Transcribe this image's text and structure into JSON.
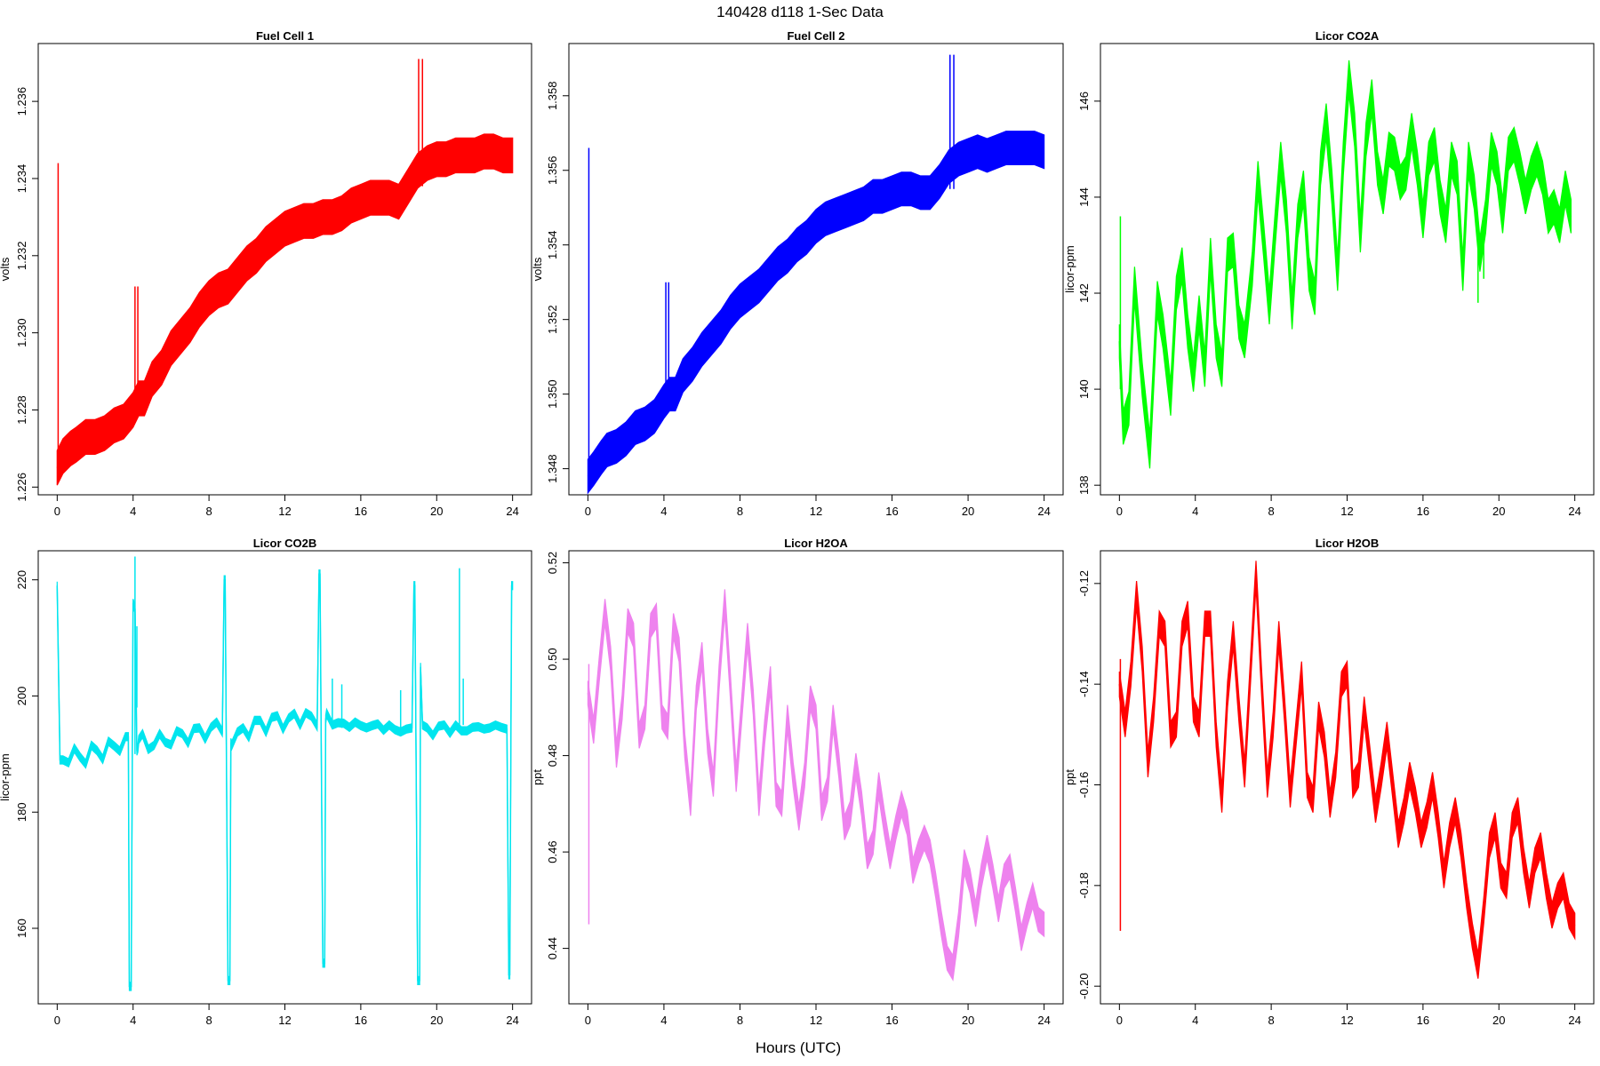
{
  "figure": {
    "title": "140428   d118   1-Sec Data",
    "xlabel": "Hours (UTC)"
  },
  "chart_data": [
    {
      "type": "line",
      "title": "Fuel Cell 1",
      "ylabel": "volts",
      "xlim": [
        -1,
        25
      ],
      "ylim": [
        1.2258,
        1.2375
      ],
      "xticks": [
        0,
        4,
        8,
        12,
        16,
        20,
        24
      ],
      "yticks": [
        1.226,
        1.228,
        1.23,
        1.232,
        1.234,
        1.236
      ],
      "ytick_labels": [
        "1.226",
        "1.228",
        "1.230",
        "1.232",
        "1.234",
        "1.236"
      ],
      "color": "#ff0000",
      "band": 0.00045,
      "x": [
        0,
        0.3,
        0.7,
        1,
        1.5,
        2,
        2.5,
        3,
        3.5,
        4,
        4.3,
        4.6,
        5,
        5.5,
        6,
        6.5,
        7,
        7.5,
        8,
        8.5,
        9,
        9.5,
        10,
        10.5,
        11,
        11.5,
        12,
        12.5,
        13,
        13.5,
        14,
        14.5,
        15,
        15.5,
        16,
        16.5,
        17,
        17.5,
        18,
        18.5,
        19,
        19.5,
        20,
        20.5,
        21,
        21.5,
        22,
        22.5,
        23,
        23.5,
        24
      ],
      "y": [
        1.2265,
        1.2268,
        1.227,
        1.2271,
        1.2273,
        1.2273,
        1.2274,
        1.2276,
        1.2277,
        1.228,
        1.2283,
        1.2283,
        1.2288,
        1.2291,
        1.2296,
        1.2299,
        1.2302,
        1.2306,
        1.2309,
        1.2311,
        1.2312,
        1.2315,
        1.2318,
        1.232,
        1.2323,
        1.2325,
        1.2327,
        1.2328,
        1.2329,
        1.2329,
        1.233,
        1.233,
        1.2331,
        1.2333,
        1.2334,
        1.2335,
        1.2335,
        1.2335,
        1.2334,
        1.2338,
        1.2342,
        1.2344,
        1.2345,
        1.2345,
        1.2346,
        1.2346,
        1.2346,
        1.2347,
        1.2347,
        1.2346,
        1.2346
      ],
      "spikes": [
        {
          "x": 0.05,
          "y": [
            1.2262,
            1.2344
          ]
        },
        {
          "x": 4.1,
          "y": [
            1.2281,
            1.2312
          ]
        },
        {
          "x": 4.25,
          "y": [
            1.2281,
            1.2312
          ]
        },
        {
          "x": 19.05,
          "y": [
            1.2338,
            1.2371
          ]
        },
        {
          "x": 19.25,
          "y": [
            1.2338,
            1.2371
          ]
        }
      ]
    },
    {
      "type": "line",
      "title": "Fuel Cell 2",
      "ylabel": "volts",
      "xlim": [
        -1,
        25
      ],
      "ylim": [
        1.3473,
        1.3594
      ],
      "xticks": [
        0,
        4,
        8,
        12,
        16,
        20,
        24
      ],
      "yticks": [
        1.348,
        1.35,
        1.352,
        1.354,
        1.356,
        1.358
      ],
      "ytick_labels": [
        "1.348",
        "1.350",
        "1.352",
        "1.354",
        "1.356",
        "1.358"
      ],
      "color": "#0000ff",
      "band": 0.00045,
      "x": [
        0,
        0.3,
        0.7,
        1,
        1.5,
        2,
        2.5,
        3,
        3.5,
        4,
        4.3,
        4.6,
        5,
        5.5,
        6,
        6.5,
        7,
        7.5,
        8,
        8.5,
        9,
        9.5,
        10,
        10.5,
        11,
        11.5,
        12,
        12.5,
        13,
        13.5,
        14,
        14.5,
        15,
        15.5,
        16,
        16.5,
        17,
        17.5,
        18,
        18.5,
        19,
        19.5,
        20,
        20.5,
        21,
        21.5,
        22,
        22.5,
        23,
        23.5,
        24
      ],
      "y": [
        1.3478,
        1.348,
        1.3483,
        1.3485,
        1.3486,
        1.3488,
        1.3491,
        1.3492,
        1.3494,
        1.3498,
        1.35,
        1.35,
        1.3505,
        1.3508,
        1.3512,
        1.3515,
        1.3518,
        1.3522,
        1.3525,
        1.3527,
        1.3529,
        1.3532,
        1.3535,
        1.3537,
        1.354,
        1.3542,
        1.3545,
        1.3547,
        1.3548,
        1.3549,
        1.355,
        1.3551,
        1.3553,
        1.3553,
        1.3554,
        1.3555,
        1.3555,
        1.3554,
        1.3554,
        1.3557,
        1.3561,
        1.3563,
        1.3564,
        1.3565,
        1.3564,
        1.3565,
        1.3566,
        1.3566,
        1.3566,
        1.3566,
        1.3565
      ],
      "spikes": [
        {
          "x": 0.05,
          "y": [
            1.3476,
            1.3566
          ]
        },
        {
          "x": 4.1,
          "y": [
            1.3497,
            1.353
          ]
        },
        {
          "x": 4.25,
          "y": [
            1.3497,
            1.353
          ]
        },
        {
          "x": 19.05,
          "y": [
            1.3555,
            1.3591
          ]
        },
        {
          "x": 19.25,
          "y": [
            1.3555,
            1.3591
          ]
        }
      ]
    },
    {
      "type": "line",
      "title": "Licor CO2A",
      "ylabel": "licor-ppm",
      "xlim": [
        -1,
        25
      ],
      "ylim": [
        137.8,
        147.2
      ],
      "xticks": [
        0,
        4,
        8,
        12,
        16,
        20,
        24
      ],
      "yticks": [
        138,
        140,
        142,
        144,
        146
      ],
      "ytick_labels": [
        "138",
        "140",
        "142",
        "144",
        "146"
      ],
      "color": "#00ff00",
      "band": 0.35,
      "x": [
        0,
        0.2,
        0.5,
        0.8,
        1.2,
        1.6,
        2,
        2.3,
        2.7,
        3,
        3.3,
        3.6,
        3.9,
        4.2,
        4.5,
        4.8,
        5.1,
        5.4,
        5.7,
        6,
        6.3,
        6.6,
        7,
        7.3,
        7.6,
        7.9,
        8.2,
        8.5,
        8.8,
        9.1,
        9.4,
        9.7,
        10,
        10.3,
        10.6,
        10.9,
        11.2,
        11.5,
        11.8,
        12.1,
        12.4,
        12.7,
        13,
        13.3,
        13.6,
        13.9,
        14.2,
        14.5,
        14.8,
        15.1,
        15.4,
        15.7,
        16,
        16.3,
        16.6,
        16.9,
        17.2,
        17.5,
        17.8,
        18.1,
        18.4,
        18.7,
        19,
        19.3,
        19.6,
        19.9,
        20.2,
        20.5,
        20.8,
        21.1,
        21.4,
        21.7,
        22,
        22.3,
        22.6,
        22.9,
        23.2,
        23.5,
        23.8
      ],
      "y": [
        141.0,
        139.2,
        139.6,
        142.2,
        140.2,
        138.7,
        141.9,
        141.2,
        139.8,
        142.0,
        142.6,
        141.2,
        140.3,
        141.6,
        140.4,
        142.8,
        141.0,
        140.4,
        142.8,
        142.9,
        141.4,
        141.0,
        142.5,
        144.4,
        143.1,
        141.7,
        143.3,
        144.8,
        143.6,
        141.6,
        143.5,
        144.2,
        142.4,
        141.9,
        144.6,
        145.6,
        144.2,
        142.4,
        144.8,
        146.5,
        145.4,
        143.2,
        145.2,
        146.1,
        144.6,
        144.0,
        145.0,
        144.9,
        144.3,
        144.5,
        145.4,
        144.6,
        143.5,
        144.8,
        145.1,
        144.0,
        143.4,
        144.8,
        144.4,
        142.4,
        144.8,
        144.1,
        142.8,
        143.6,
        145.0,
        144.6,
        143.6,
        144.9,
        145.1,
        144.6,
        144.0,
        144.5,
        144.8,
        144.4,
        143.6,
        143.8,
        143.4,
        144.2,
        143.6
      ],
      "spikes": [
        {
          "x": 0.05,
          "y": [
            140.0,
            143.6
          ]
        },
        {
          "x": 18.9,
          "y": [
            141.8,
            143.2
          ]
        },
        {
          "x": 19.2,
          "y": [
            142.3,
            143.4
          ]
        }
      ]
    },
    {
      "type": "line",
      "title": "Licor CO2B",
      "ylabel": "licor-ppm",
      "xlim": [
        -1,
        25
      ],
      "ylim": [
        147,
        225
      ],
      "xticks": [
        0,
        4,
        8,
        12,
        16,
        20,
        24
      ],
      "yticks": [
        160,
        180,
        200,
        220
      ],
      "ytick_labels": [
        "160",
        "180",
        "200",
        "220"
      ],
      "color": "#00e5ee",
      "band": 0.7,
      "x": [
        0,
        0.15,
        0.3,
        0.6,
        0.9,
        1.2,
        1.5,
        1.8,
        2.1,
        2.4,
        2.7,
        3.0,
        3.3,
        3.6,
        3.75,
        3.8,
        3.9,
        4.0,
        4.1,
        4.2,
        4.25,
        4.3,
        4.5,
        4.8,
        5.1,
        5.4,
        5.7,
        6.0,
        6.3,
        6.6,
        6.9,
        7.2,
        7.5,
        7.8,
        8.1,
        8.4,
        8.7,
        8.8,
        8.85,
        9.0,
        9.1,
        9.15,
        9.2,
        9.5,
        9.8,
        10.1,
        10.4,
        10.7,
        11.0,
        11.3,
        11.6,
        11.9,
        12.2,
        12.5,
        12.8,
        13.1,
        13.4,
        13.7,
        13.8,
        13.85,
        14.0,
        14.1,
        14.15,
        14.2,
        14.5,
        14.8,
        15.1,
        15.4,
        15.7,
        16.0,
        16.3,
        16.6,
        16.9,
        17.2,
        17.5,
        17.8,
        18.1,
        18.4,
        18.7,
        18.8,
        18.85,
        19.0,
        19.1,
        19.15,
        19.25,
        19.5,
        19.8,
        20.1,
        20.4,
        20.7,
        21.0,
        21.3,
        21.6,
        21.9,
        22.2,
        22.5,
        22.8,
        23.1,
        23.4,
        23.7,
        23.8,
        23.85,
        23.95,
        24.0
      ],
      "y": [
        219,
        189,
        189,
        188.5,
        191,
        189.5,
        188.3,
        191.5,
        190.6,
        189.1,
        192.2,
        191.4,
        190.5,
        193,
        193,
        150,
        150,
        216,
        215,
        190.5,
        191,
        192.5,
        193.5,
        190.8,
        191.5,
        193.5,
        192.0,
        191.6,
        194.0,
        193.5,
        191.9,
        194.4,
        194.5,
        192.6,
        194.6,
        195.5,
        193.8,
        220,
        220,
        151,
        151,
        192,
        191.5,
        193.8,
        194.5,
        192.9,
        195.8,
        195.8,
        193.8,
        196.3,
        196.6,
        194.3,
        196.2,
        197.0,
        195.0,
        197.1,
        196.5,
        194.8,
        221,
        221,
        154,
        154,
        196,
        197,
        195.0,
        195.4,
        195.3,
        194.6,
        195.5,
        194.9,
        194.5,
        194.9,
        195.2,
        194.1,
        195.0,
        194.2,
        193.8,
        194.3,
        194.5,
        219,
        219,
        151,
        151,
        205,
        195.0,
        194.5,
        193.2,
        194.8,
        195.0,
        193.6,
        195.0,
        194.0,
        194.0,
        194.6,
        194.7,
        194.3,
        194.5,
        195.0,
        194.6,
        194.3,
        152,
        152,
        219,
        219
      ],
      "spikes": [
        {
          "x": 4.1,
          "y": [
            190.0,
            224.0
          ]
        },
        {
          "x": 4.2,
          "y": [
            198.0,
            212.0
          ]
        },
        {
          "x": 14.5,
          "y": [
            195.0,
            203.0
          ]
        },
        {
          "x": 15.0,
          "y": [
            194.5,
            202.0
          ]
        },
        {
          "x": 18.1,
          "y": [
            193.5,
            201.0
          ]
        },
        {
          "x": 21.2,
          "y": [
            195.0,
            222.0
          ]
        },
        {
          "x": 21.4,
          "y": [
            195.0,
            203.0
          ]
        }
      ]
    },
    {
      "type": "line",
      "title": "Licor H2OA",
      "ylabel": "ppt",
      "xlim": [
        -1,
        25
      ],
      "ylim": [
        0.4285,
        0.5225
      ],
      "xticks": [
        0,
        4,
        8,
        12,
        16,
        20,
        24
      ],
      "yticks": [
        0.44,
        0.46,
        0.48,
        0.5,
        0.52
      ],
      "ytick_labels": [
        "0.44",
        "0.46",
        "0.48",
        "0.50",
        "0.52"
      ],
      "color": "#ee82ee",
      "band": 0.0025,
      "x": [
        0,
        0.3,
        0.6,
        0.9,
        1.2,
        1.5,
        1.8,
        2.1,
        2.4,
        2.7,
        3.0,
        3.3,
        3.6,
        3.9,
        4.2,
        4.5,
        4.8,
        5.1,
        5.4,
        5.7,
        6.0,
        6.3,
        6.6,
        6.9,
        7.2,
        7.5,
        7.8,
        8.1,
        8.4,
        8.7,
        9.0,
        9.3,
        9.6,
        9.9,
        10.2,
        10.5,
        10.8,
        11.1,
        11.4,
        11.7,
        12.0,
        12.3,
        12.6,
        12.9,
        13.2,
        13.5,
        13.8,
        14.1,
        14.4,
        14.7,
        15.0,
        15.3,
        15.6,
        15.9,
        16.2,
        16.5,
        16.8,
        17.1,
        17.4,
        17.7,
        18.0,
        18.3,
        18.6,
        18.9,
        19.2,
        19.5,
        19.8,
        20.1,
        20.4,
        20.7,
        21.0,
        21.3,
        21.6,
        21.9,
        22.2,
        22.5,
        22.8,
        23.1,
        23.4,
        23.7,
        24.0
      ],
      "y": [
        0.493,
        0.485,
        0.498,
        0.51,
        0.5,
        0.48,
        0.49,
        0.508,
        0.505,
        0.484,
        0.488,
        0.507,
        0.509,
        0.488,
        0.486,
        0.507,
        0.502,
        0.482,
        0.47,
        0.492,
        0.501,
        0.483,
        0.474,
        0.496,
        0.512,
        0.494,
        0.475,
        0.49,
        0.505,
        0.491,
        0.47,
        0.485,
        0.496,
        0.472,
        0.47,
        0.488,
        0.476,
        0.467,
        0.476,
        0.492,
        0.488,
        0.469,
        0.473,
        0.488,
        0.478,
        0.465,
        0.468,
        0.478,
        0.47,
        0.459,
        0.462,
        0.474,
        0.466,
        0.459,
        0.465,
        0.47,
        0.466,
        0.456,
        0.46,
        0.463,
        0.46,
        0.453,
        0.445,
        0.438,
        0.436,
        0.445,
        0.458,
        0.454,
        0.447,
        0.455,
        0.461,
        0.455,
        0.448,
        0.455,
        0.457,
        0.45,
        0.442,
        0.447,
        0.451,
        0.446,
        0.445
      ],
      "spikes": [
        {
          "x": 0.05,
          "y": [
            0.445,
            0.499
          ]
        }
      ]
    },
    {
      "type": "line",
      "title": "Licor H2OB",
      "ylabel": "ppt",
      "xlim": [
        -1,
        25
      ],
      "ylim": [
        -0.2035,
        -0.1135
      ],
      "xticks": [
        0,
        4,
        8,
        12,
        16,
        20,
        24
      ],
      "yticks": [
        -0.2,
        -0.18,
        -0.16,
        -0.14,
        -0.12
      ],
      "ytick_labels": [
        "-0.20",
        "-0.18",
        "-0.16",
        "-0.14",
        "-0.12"
      ],
      "color": "#ff0000",
      "band": 0.0025,
      "x": [
        0,
        0.3,
        0.6,
        0.9,
        1.2,
        1.5,
        1.8,
        2.1,
        2.4,
        2.7,
        3.0,
        3.3,
        3.6,
        3.9,
        4.2,
        4.5,
        4.8,
        5.1,
        5.4,
        5.7,
        6.0,
        6.3,
        6.6,
        6.9,
        7.2,
        7.5,
        7.8,
        8.1,
        8.4,
        8.7,
        9.0,
        9.3,
        9.6,
        9.9,
        10.2,
        10.5,
        10.8,
        11.1,
        11.4,
        11.7,
        12.0,
        12.3,
        12.6,
        12.9,
        13.2,
        13.5,
        13.8,
        14.1,
        14.4,
        14.7,
        15.0,
        15.3,
        15.6,
        15.9,
        16.2,
        16.5,
        16.8,
        17.1,
        17.4,
        17.7,
        18.0,
        18.3,
        18.6,
        18.9,
        19.2,
        19.5,
        19.8,
        20.1,
        20.4,
        20.7,
        21.0,
        21.3,
        21.6,
        21.9,
        22.2,
        22.5,
        22.8,
        23.1,
        23.4,
        23.7,
        24.0
      ],
      "y": [
        -0.14,
        -0.148,
        -0.138,
        -0.122,
        -0.135,
        -0.156,
        -0.145,
        -0.128,
        -0.13,
        -0.15,
        -0.148,
        -0.13,
        -0.126,
        -0.145,
        -0.148,
        -0.128,
        -0.128,
        -0.15,
        -0.163,
        -0.142,
        -0.13,
        -0.145,
        -0.158,
        -0.138,
        -0.118,
        -0.14,
        -0.16,
        -0.148,
        -0.13,
        -0.145,
        -0.162,
        -0.15,
        -0.138,
        -0.16,
        -0.163,
        -0.146,
        -0.152,
        -0.164,
        -0.156,
        -0.14,
        -0.138,
        -0.16,
        -0.158,
        -0.145,
        -0.155,
        -0.165,
        -0.158,
        -0.15,
        -0.16,
        -0.17,
        -0.165,
        -0.158,
        -0.163,
        -0.17,
        -0.166,
        -0.16,
        -0.168,
        -0.178,
        -0.17,
        -0.165,
        -0.172,
        -0.182,
        -0.19,
        -0.196,
        -0.185,
        -0.172,
        -0.168,
        -0.178,
        -0.18,
        -0.168,
        -0.165,
        -0.175,
        -0.182,
        -0.175,
        -0.172,
        -0.18,
        -0.186,
        -0.182,
        -0.18,
        -0.186,
        -0.188
      ],
      "spikes": [
        {
          "x": 0.05,
          "y": [
            -0.189,
            -0.135
          ]
        }
      ]
    }
  ]
}
